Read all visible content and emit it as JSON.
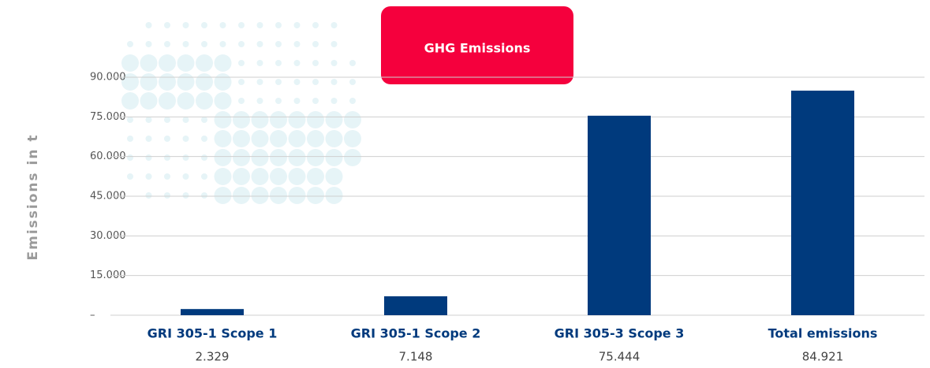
{
  "chart_data": {
    "type": "bar",
    "title": "GHG Emissions",
    "y_label": "Emissions in t",
    "categories": [
      "GRI 305-1 Scope 1",
      "GRI 305-1 Scope 2",
      "GRI 305-3 Scope 3",
      "Total emissions"
    ],
    "values": [
      2329,
      7148,
      75444,
      84921
    ],
    "value_labels": [
      "2.329",
      "7.148",
      "75.444",
      "84.921"
    ],
    "color": "#003a7d",
    "ylim": [
      0,
      90000
    ],
    "yticks": [
      {
        "value": 0,
        "label": "–"
      },
      {
        "value": 15000,
        "label": "15.000"
      },
      {
        "value": 30000,
        "label": "30.000"
      },
      {
        "value": 45000,
        "label": "45.000"
      },
      {
        "value": 60000,
        "label": "60.000"
      },
      {
        "value": 75000,
        "label": "75.000"
      },
      {
        "value": 90000,
        "label": "90.000"
      }
    ],
    "grid": true
  }
}
